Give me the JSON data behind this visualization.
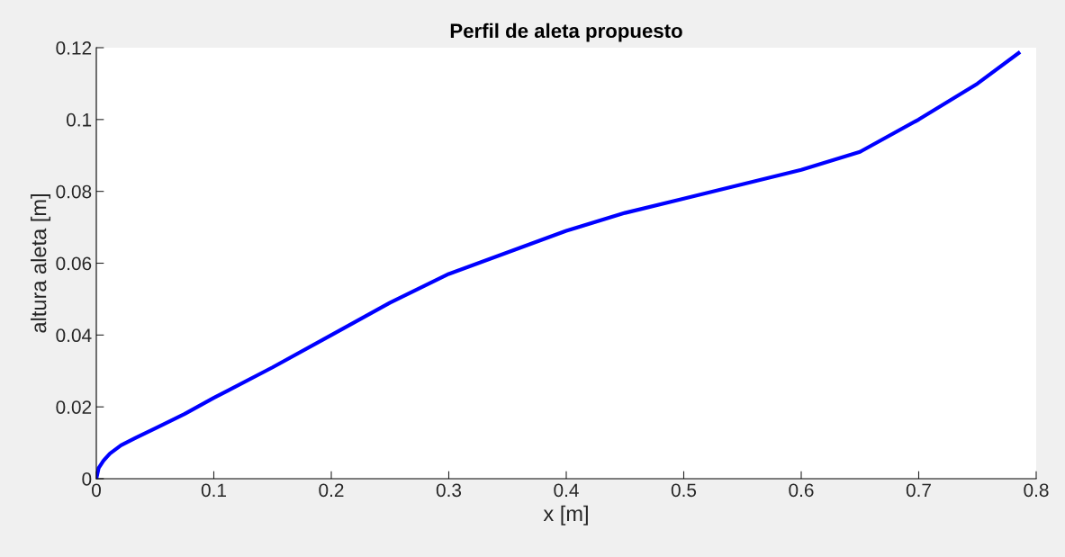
{
  "chart_data": {
    "type": "line",
    "title": "Perfil de aleta propuesto",
    "xlabel": "x [m]",
    "ylabel": "altura aleta [m]",
    "series": [
      {
        "color": "#0000ff",
        "x": [
          0,
          0.002,
          0.006,
          0.0115,
          0.021,
          0.033,
          0.052,
          0.075,
          0.1,
          0.15,
          0.2,
          0.25,
          0.3,
          0.35,
          0.4,
          0.45,
          0.5,
          0.55,
          0.6,
          0.65,
          0.7,
          0.75,
          0.785
        ],
        "values": [
          0,
          0.003,
          0.005,
          0.007,
          0.0093,
          0.0113,
          0.0143,
          0.018,
          0.0225,
          0.031,
          0.04,
          0.049,
          0.057,
          0.063,
          0.069,
          0.074,
          0.078,
          0.082,
          0.086,
          0.091,
          0.1,
          0.11,
          0.1185
        ]
      }
    ],
    "xlim": [
      0,
      0.8
    ],
    "xticks": [
      0,
      0.1,
      0.2,
      0.3,
      0.4,
      0.5,
      0.6,
      0.7,
      0.8
    ],
    "ylim": [
      0,
      0.12
    ],
    "yticks": [
      0,
      0.02,
      0.04,
      0.06,
      0.08,
      0.1,
      0.12
    ],
    "grid": false,
    "legend": false,
    "marker": "none",
    "line_style": "solid"
  }
}
